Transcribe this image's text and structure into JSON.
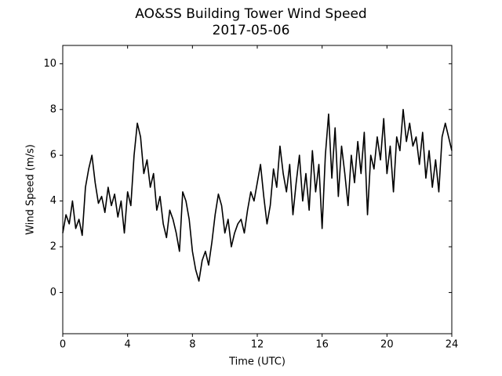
{
  "chart_data": {
    "type": "line",
    "title": "AO&SS Building Tower Wind Speed",
    "subtitle": "2017-05-06",
    "x_label": "Time (UTC)",
    "y_label": "Wind Speed (m/s)",
    "x": [
      0,
      0.2,
      0.4,
      0.6,
      0.8,
      1,
      1.2,
      1.4,
      1.6,
      1.8,
      2,
      2.2,
      2.4,
      2.6,
      2.8,
      3,
      3.2,
      3.4,
      3.6,
      3.8,
      4,
      4.2,
      4.4,
      4.6,
      4.8,
      5,
      5.2,
      5.4,
      5.6,
      5.8,
      6,
      6.2,
      6.4,
      6.6,
      6.8,
      7,
      7.2,
      7.4,
      7.6,
      7.8,
      8,
      8.2,
      8.4,
      8.6,
      8.8,
      9,
      9.2,
      9.4,
      9.6,
      9.8,
      10,
      10.2,
      10.4,
      10.6,
      10.8,
      11,
      11.2,
      11.4,
      11.6,
      11.8,
      12,
      12.2,
      12.4,
      12.6,
      12.8,
      13,
      13.2,
      13.4,
      13.6,
      13.8,
      14,
      14.2,
      14.4,
      14.6,
      14.8,
      15,
      15.2,
      15.4,
      15.6,
      15.8,
      16,
      16.2,
      16.4,
      16.6,
      16.8,
      17,
      17.2,
      17.4,
      17.6,
      17.8,
      18,
      18.2,
      18.4,
      18.6,
      18.8,
      19,
      19.2,
      19.4,
      19.6,
      19.8,
      20,
      20.2,
      20.4,
      20.6,
      20.8,
      21,
      21.2,
      21.4,
      21.6,
      21.8,
      22,
      22.2,
      22.4,
      22.6,
      22.8,
      23,
      23.2,
      23.4,
      23.6,
      23.8,
      24
    ],
    "series": [
      {
        "name": "Wind Speed",
        "color": "#000000",
        "values": [
          2.6,
          3.4,
          3.0,
          4.0,
          2.8,
          3.2,
          2.5,
          4.6,
          5.4,
          6.0,
          4.8,
          3.9,
          4.2,
          3.5,
          4.6,
          3.8,
          4.3,
          3.3,
          4.0,
          2.6,
          4.4,
          3.8,
          6.0,
          7.4,
          6.8,
          5.2,
          5.8,
          4.6,
          5.2,
          3.6,
          4.2,
          3.0,
          2.4,
          3.6,
          3.2,
          2.6,
          1.8,
          4.4,
          4.0,
          3.2,
          1.8,
          1.0,
          0.5,
          1.4,
          1.8,
          1.2,
          2.2,
          3.4,
          4.3,
          3.8,
          2.6,
          3.2,
          2.0,
          2.6,
          3.0,
          3.2,
          2.6,
          3.6,
          4.4,
          4.0,
          4.8,
          5.6,
          4.2,
          3.0,
          3.8,
          5.4,
          4.6,
          6.4,
          5.2,
          4.4,
          5.6,
          3.4,
          4.8,
          6.0,
          4.0,
          5.2,
          3.6,
          6.2,
          4.4,
          5.6,
          2.8,
          6.0,
          7.8,
          5.0,
          7.2,
          4.2,
          6.4,
          5.2,
          3.8,
          6.0,
          4.8,
          6.6,
          5.2,
          7.0,
          3.4,
          6.0,
          5.4,
          6.8,
          5.8,
          7.6,
          5.2,
          6.4,
          4.4,
          6.8,
          6.2,
          8.0,
          6.6,
          7.4,
          6.4,
          6.8,
          5.6,
          7.0,
          5.0,
          6.2,
          4.6,
          5.8,
          4.4,
          6.8,
          7.4,
          6.8,
          6.2
        ]
      }
    ],
    "xlim": [
      0,
      24
    ],
    "xticks": [
      0,
      4,
      8,
      12,
      16,
      20,
      24
    ],
    "ylim": [
      -1.8,
      10.8
    ],
    "yticks": [
      0,
      2,
      4,
      6,
      8,
      10
    ]
  }
}
